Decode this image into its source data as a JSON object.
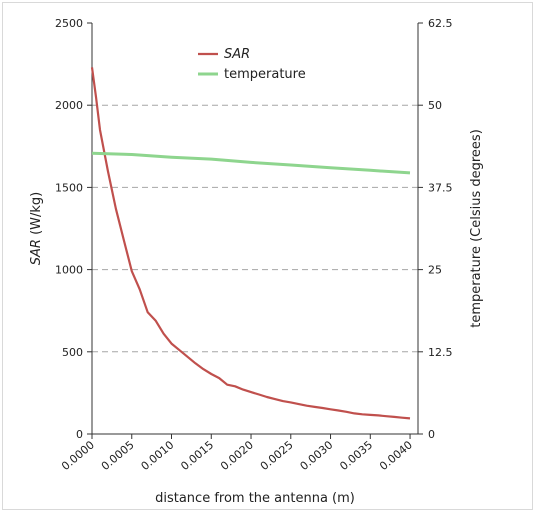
{
  "chart_data": {
    "type": "line",
    "xlabel": "distance from the antenna (m)",
    "ylabel_left": {
      "italic": "SAR",
      "rest": " (W/kg)"
    },
    "ylabel_right": "temperature (Celsius degrees)",
    "x_ticks": [
      "0.0000",
      "0.0005",
      "0.0010",
      "0.0015",
      "0.0020",
      "0.0025",
      "0.0030",
      "0.0035",
      "0.0040"
    ],
    "y_left_ticks": [
      "0",
      "500",
      "1000",
      "1500",
      "2000",
      "2500"
    ],
    "y_right_ticks": [
      "0",
      "12.5",
      "25",
      "37.5",
      "50",
      "62.5"
    ],
    "xlim": [
      0,
      0.0041
    ],
    "ylim_left": [
      0,
      2500
    ],
    "ylim_right": [
      0,
      62.5
    ],
    "grid": "dashed horizontal",
    "legend": "top-center",
    "series": [
      {
        "name": "SAR",
        "axis": "left",
        "color": "#c0504d",
        "x": [
          0.0,
          5e-05,
          0.0001,
          0.0002,
          0.0003,
          0.0004,
          0.0005,
          0.0006,
          0.0007,
          0.0008,
          0.0009,
          0.001,
          0.0011,
          0.0012,
          0.0013,
          0.0014,
          0.0015,
          0.0016,
          0.0017,
          0.0018,
          0.0019,
          0.002,
          0.0021,
          0.0022,
          0.0023,
          0.0024,
          0.0025,
          0.0026,
          0.0027,
          0.0028,
          0.0029,
          0.003,
          0.0031,
          0.0032,
          0.0033,
          0.0034,
          0.0035,
          0.0036,
          0.0037,
          0.0038,
          0.0039,
          0.004
        ],
        "values": [
          2230,
          2050,
          1850,
          1600,
          1370,
          1180,
          990,
          880,
          740,
          690,
          610,
          550,
          510,
          470,
          430,
          395,
          365,
          340,
          300,
          290,
          270,
          255,
          240,
          225,
          212,
          200,
          192,
          182,
          172,
          165,
          158,
          150,
          143,
          135,
          125,
          120,
          116,
          113,
          108,
          104,
          99,
          95
        ]
      },
      {
        "name": "temperature",
        "axis": "right",
        "color": "#8ed58e",
        "x": [
          0.0,
          0.0005,
          0.001,
          0.0015,
          0.002,
          0.0025,
          0.003,
          0.0035,
          0.004
        ],
        "values": [
          42.7,
          42.5,
          42.1,
          41.8,
          41.3,
          40.9,
          40.5,
          40.1,
          39.7
        ]
      }
    ]
  }
}
